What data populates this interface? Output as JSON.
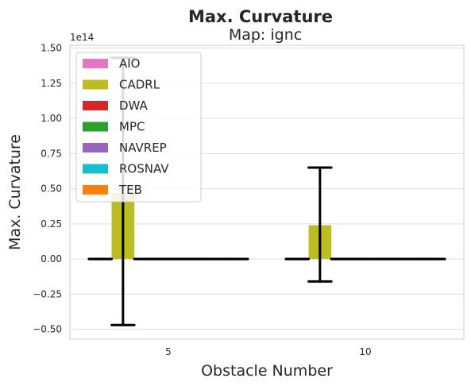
{
  "chart_data": {
    "type": "bar",
    "title": "Max. Curvature",
    "subtitle": "Map: ignc",
    "xlabel": "Obstacle Number",
    "ylabel": "Max. Curvature",
    "offset_text": "1e14",
    "categories": [
      "5",
      "10"
    ],
    "ylim": [
      -0.57,
      1.52
    ],
    "yticks": [
      -0.5,
      -0.25,
      0.0,
      0.25,
      0.5,
      0.75,
      1.0,
      1.25,
      1.5
    ],
    "ytick_labels": [
      "−0.50",
      "−0.25",
      "0.00",
      "0.25",
      "0.50",
      "0.75",
      "1.00",
      "1.25",
      "1.50"
    ],
    "grid": "y",
    "legend_position": "top-left",
    "series": [
      {
        "name": "AIO",
        "color": "#e377c2",
        "values": [
          0,
          0
        ],
        "err_low": [
          0,
          0
        ],
        "err_high": [
          0,
          0
        ]
      },
      {
        "name": "CADRL",
        "color": "#bcbd22",
        "values": [
          0.47,
          0.24
        ],
        "err_low": [
          -0.47,
          -0.16
        ],
        "err_high": [
          1.43,
          0.65
        ]
      },
      {
        "name": "DWA",
        "color": "#d62728",
        "values": [
          0,
          0
        ],
        "err_low": [
          0,
          0
        ],
        "err_high": [
          0,
          0
        ]
      },
      {
        "name": "MPC",
        "color": "#2ca02c",
        "values": [
          0,
          0
        ],
        "err_low": [
          0,
          0
        ],
        "err_high": [
          0,
          0
        ]
      },
      {
        "name": "NAVREP",
        "color": "#9467bd",
        "values": [
          0,
          0
        ],
        "err_low": [
          0,
          0
        ],
        "err_high": [
          0,
          0
        ]
      },
      {
        "name": "ROSNAV",
        "color": "#17becf",
        "values": [
          0,
          0
        ],
        "err_low": [
          0,
          0
        ],
        "err_high": [
          0,
          0
        ]
      },
      {
        "name": "TEB",
        "color": "#ff7f0e",
        "values": [
          0,
          0
        ],
        "err_low": [
          0,
          0
        ],
        "err_high": [
          0,
          0
        ]
      }
    ]
  }
}
